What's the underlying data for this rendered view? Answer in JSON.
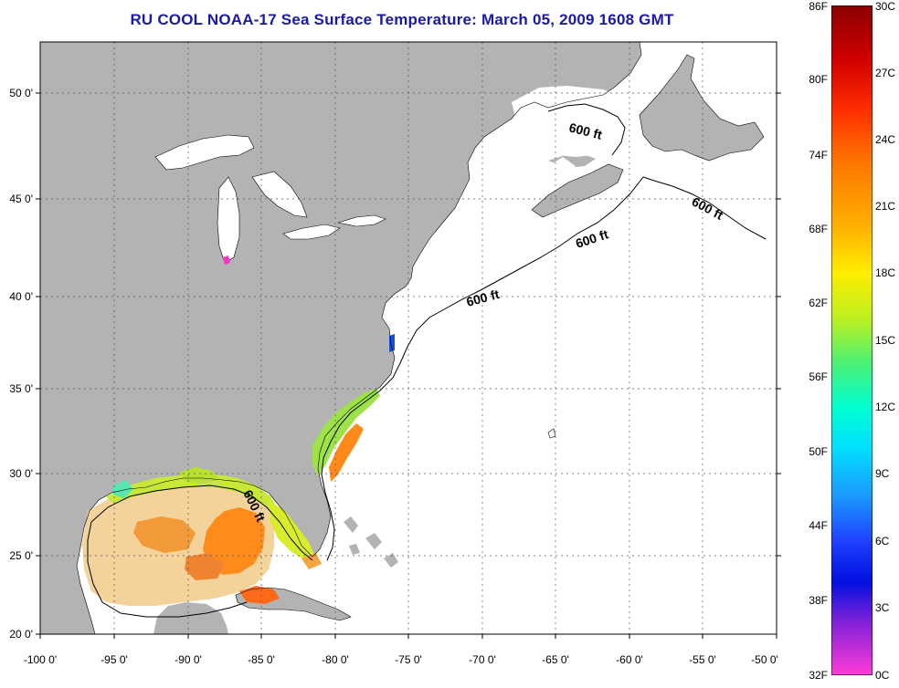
{
  "title": "RU COOL  NOAA-17  Sea Surface Temperature:  March 05, 2009 1608 GMT",
  "map": {
    "lat_labels": [
      "50 0'",
      "45 0'",
      "40 0'",
      "35 0'",
      "30 0'",
      "25 0'",
      "20 0'"
    ],
    "lon_labels": [
      "-100 0'",
      "-95 0'",
      "-90 0'",
      "-85 0'",
      "-80 0'",
      "-75 0'",
      "-70 0'",
      "-65 0'",
      "-60 0'",
      "-55 0'",
      "-50 0'"
    ],
    "contour_labels": [
      "600 ft",
      "600 ft",
      "600 ft",
      "600 ft",
      "600 ft"
    ],
    "colors": {
      "land": "#b3b3b3",
      "ocean": "#ffffff",
      "grid": "#555555"
    }
  },
  "colorbar": {
    "fahrenheit_labels": [
      "86F",
      "80F",
      "74F",
      "68F",
      "62F",
      "56F",
      "50F",
      "44F",
      "38F",
      "32F"
    ],
    "celsius_labels": [
      "30C",
      "27C",
      "24C",
      "21C",
      "18C",
      "15C",
      "12C",
      "9C",
      "6C",
      "3C",
      "0C"
    ]
  }
}
